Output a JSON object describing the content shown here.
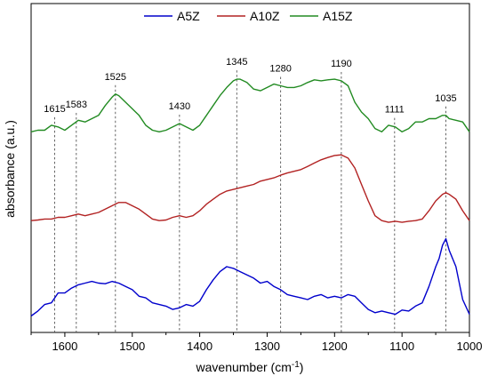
{
  "chart_data": {
    "type": "line",
    "xlabel": "wavenumber (cm",
    "xlabel_sup": "-1",
    "xlabel_close": ")",
    "ylabel": "absorbance (a.u.)",
    "xlim": [
      1650,
      1000
    ],
    "x_reversed": true,
    "xticks": [
      1600,
      1500,
      1400,
      1300,
      1200,
      1100,
      1000
    ],
    "yticks_shown": false,
    "grid": false,
    "legend_position": "top",
    "series": [
      {
        "name": "A5Z",
        "color": "#0000cc",
        "points": [
          [
            1650,
            0.05
          ],
          [
            1640,
            0.065
          ],
          [
            1630,
            0.085
          ],
          [
            1620,
            0.09
          ],
          [
            1610,
            0.12
          ],
          [
            1600,
            0.12
          ],
          [
            1590,
            0.135
          ],
          [
            1580,
            0.145
          ],
          [
            1570,
            0.15
          ],
          [
            1560,
            0.155
          ],
          [
            1550,
            0.15
          ],
          [
            1540,
            0.148
          ],
          [
            1530,
            0.155
          ],
          [
            1520,
            0.15
          ],
          [
            1510,
            0.14
          ],
          [
            1500,
            0.13
          ],
          [
            1490,
            0.11
          ],
          [
            1480,
            0.105
          ],
          [
            1470,
            0.09
          ],
          [
            1460,
            0.085
          ],
          [
            1450,
            0.08
          ],
          [
            1440,
            0.07
          ],
          [
            1430,
            0.075
          ],
          [
            1420,
            0.085
          ],
          [
            1410,
            0.08
          ],
          [
            1400,
            0.095
          ],
          [
            1390,
            0.13
          ],
          [
            1380,
            0.16
          ],
          [
            1370,
            0.185
          ],
          [
            1360,
            0.2
          ],
          [
            1350,
            0.195
          ],
          [
            1340,
            0.185
          ],
          [
            1330,
            0.175
          ],
          [
            1320,
            0.165
          ],
          [
            1310,
            0.15
          ],
          [
            1300,
            0.155
          ],
          [
            1290,
            0.14
          ],
          [
            1280,
            0.13
          ],
          [
            1270,
            0.115
          ],
          [
            1260,
            0.11
          ],
          [
            1250,
            0.105
          ],
          [
            1240,
            0.1
          ],
          [
            1230,
            0.11
          ],
          [
            1220,
            0.115
          ],
          [
            1210,
            0.105
          ],
          [
            1200,
            0.11
          ],
          [
            1190,
            0.105
          ],
          [
            1180,
            0.115
          ],
          [
            1170,
            0.11
          ],
          [
            1160,
            0.09
          ],
          [
            1150,
            0.07
          ],
          [
            1140,
            0.06
          ],
          [
            1130,
            0.065
          ],
          [
            1120,
            0.06
          ],
          [
            1110,
            0.055
          ],
          [
            1100,
            0.068
          ],
          [
            1090,
            0.065
          ],
          [
            1080,
            0.08
          ],
          [
            1070,
            0.09
          ],
          [
            1060,
            0.14
          ],
          [
            1050,
            0.2
          ],
          [
            1045,
            0.225
          ],
          [
            1040,
            0.265
          ],
          [
            1035,
            0.285
          ],
          [
            1030,
            0.25
          ],
          [
            1020,
            0.2
          ],
          [
            1010,
            0.1
          ],
          [
            1000,
            0.055
          ]
        ]
      },
      {
        "name": "A10Z",
        "color": "#b22222",
        "points": [
          [
            1650,
            0.34
          ],
          [
            1640,
            0.342
          ],
          [
            1630,
            0.345
          ],
          [
            1620,
            0.345
          ],
          [
            1610,
            0.35
          ],
          [
            1600,
            0.35
          ],
          [
            1590,
            0.355
          ],
          [
            1580,
            0.36
          ],
          [
            1570,
            0.355
          ],
          [
            1560,
            0.36
          ],
          [
            1550,
            0.365
          ],
          [
            1540,
            0.375
          ],
          [
            1530,
            0.385
          ],
          [
            1520,
            0.395
          ],
          [
            1510,
            0.395
          ],
          [
            1500,
            0.385
          ],
          [
            1490,
            0.375
          ],
          [
            1480,
            0.36
          ],
          [
            1470,
            0.345
          ],
          [
            1460,
            0.34
          ],
          [
            1450,
            0.342
          ],
          [
            1440,
            0.35
          ],
          [
            1430,
            0.355
          ],
          [
            1420,
            0.35
          ],
          [
            1410,
            0.355
          ],
          [
            1400,
            0.37
          ],
          [
            1390,
            0.39
          ],
          [
            1380,
            0.405
          ],
          [
            1370,
            0.42
          ],
          [
            1360,
            0.43
          ],
          [
            1350,
            0.435
          ],
          [
            1340,
            0.44
          ],
          [
            1330,
            0.445
          ],
          [
            1320,
            0.45
          ],
          [
            1310,
            0.46
          ],
          [
            1300,
            0.465
          ],
          [
            1290,
            0.47
          ],
          [
            1280,
            0.478
          ],
          [
            1270,
            0.485
          ],
          [
            1260,
            0.49
          ],
          [
            1250,
            0.495
          ],
          [
            1240,
            0.505
          ],
          [
            1230,
            0.515
          ],
          [
            1220,
            0.525
          ],
          [
            1210,
            0.532
          ],
          [
            1200,
            0.538
          ],
          [
            1190,
            0.54
          ],
          [
            1180,
            0.53
          ],
          [
            1170,
            0.5
          ],
          [
            1160,
            0.45
          ],
          [
            1150,
            0.4
          ],
          [
            1140,
            0.355
          ],
          [
            1130,
            0.34
          ],
          [
            1120,
            0.335
          ],
          [
            1110,
            0.338
          ],
          [
            1100,
            0.335
          ],
          [
            1090,
            0.338
          ],
          [
            1080,
            0.34
          ],
          [
            1070,
            0.345
          ],
          [
            1060,
            0.37
          ],
          [
            1050,
            0.4
          ],
          [
            1040,
            0.42
          ],
          [
            1035,
            0.425
          ],
          [
            1030,
            0.42
          ],
          [
            1020,
            0.405
          ],
          [
            1010,
            0.37
          ],
          [
            1000,
            0.34
          ]
        ]
      },
      {
        "name": "A15Z",
        "color": "#228b22",
        "points": [
          [
            1650,
            0.61
          ],
          [
            1640,
            0.615
          ],
          [
            1630,
            0.615
          ],
          [
            1620,
            0.63
          ],
          [
            1610,
            0.625
          ],
          [
            1600,
            0.615
          ],
          [
            1590,
            0.63
          ],
          [
            1580,
            0.645
          ],
          [
            1570,
            0.64
          ],
          [
            1560,
            0.65
          ],
          [
            1550,
            0.66
          ],
          [
            1540,
            0.69
          ],
          [
            1530,
            0.715
          ],
          [
            1525,
            0.725
          ],
          [
            1520,
            0.72
          ],
          [
            1510,
            0.7
          ],
          [
            1500,
            0.68
          ],
          [
            1490,
            0.66
          ],
          [
            1480,
            0.63
          ],
          [
            1470,
            0.615
          ],
          [
            1460,
            0.61
          ],
          [
            1450,
            0.615
          ],
          [
            1440,
            0.625
          ],
          [
            1430,
            0.635
          ],
          [
            1420,
            0.625
          ],
          [
            1410,
            0.615
          ],
          [
            1400,
            0.63
          ],
          [
            1390,
            0.66
          ],
          [
            1380,
            0.69
          ],
          [
            1370,
            0.72
          ],
          [
            1360,
            0.745
          ],
          [
            1350,
            0.765
          ],
          [
            1345,
            0.77
          ],
          [
            1340,
            0.77
          ],
          [
            1330,
            0.76
          ],
          [
            1320,
            0.74
          ],
          [
            1310,
            0.735
          ],
          [
            1300,
            0.745
          ],
          [
            1290,
            0.755
          ],
          [
            1280,
            0.75
          ],
          [
            1270,
            0.745
          ],
          [
            1260,
            0.745
          ],
          [
            1250,
            0.75
          ],
          [
            1240,
            0.76
          ],
          [
            1230,
            0.768
          ],
          [
            1220,
            0.765
          ],
          [
            1210,
            0.768
          ],
          [
            1200,
            0.77
          ],
          [
            1190,
            0.765
          ],
          [
            1180,
            0.75
          ],
          [
            1170,
            0.7
          ],
          [
            1160,
            0.67
          ],
          [
            1150,
            0.65
          ],
          [
            1140,
            0.62
          ],
          [
            1130,
            0.61
          ],
          [
            1120,
            0.63
          ],
          [
            1110,
            0.625
          ],
          [
            1100,
            0.61
          ],
          [
            1090,
            0.62
          ],
          [
            1080,
            0.64
          ],
          [
            1070,
            0.64
          ],
          [
            1060,
            0.65
          ],
          [
            1050,
            0.65
          ],
          [
            1040,
            0.66
          ],
          [
            1035,
            0.66
          ],
          [
            1030,
            0.65
          ],
          [
            1020,
            0.645
          ],
          [
            1010,
            0.64
          ],
          [
            1000,
            0.61
          ]
        ]
      }
    ],
    "peak_markers": [
      {
        "label": "1615",
        "x": 1615
      },
      {
        "label": "1583",
        "x": 1583
      },
      {
        "label": "1525",
        "x": 1525
      },
      {
        "label": "1430",
        "x": 1430
      },
      {
        "label": "1345",
        "x": 1345
      },
      {
        "label": "1280",
        "x": 1280
      },
      {
        "label": "1190",
        "x": 1190
      },
      {
        "label": "1111",
        "x": 1111
      },
      {
        "label": "1035",
        "x": 1035
      }
    ]
  }
}
